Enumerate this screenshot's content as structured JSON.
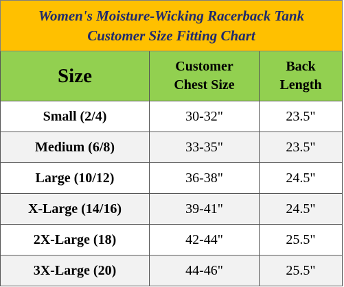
{
  "header": {
    "title": [
      "Women's Moisture-Wicking Racerback Tank",
      "Customer Size Fitting Chart"
    ]
  },
  "table": {
    "columns": [
      [
        "Size"
      ],
      [
        "Customer",
        "Chest Size"
      ],
      [
        "Back",
        "Length"
      ]
    ],
    "rows": [
      [
        "Small (2/4)",
        "30-32\"",
        "23.5\""
      ],
      [
        "Medium (6/8)",
        "33-35\"",
        "23.5\""
      ],
      [
        "Large (10/12)",
        "36-38\"",
        "24.5\""
      ],
      [
        "X-Large (14/16)",
        "39-41\"",
        "24.5\""
      ],
      [
        "2X-Large (18)",
        "42-44\"",
        "25.5\""
      ],
      [
        "3X-Large (20)",
        "44-46\"",
        "25.5\""
      ]
    ]
  }
}
